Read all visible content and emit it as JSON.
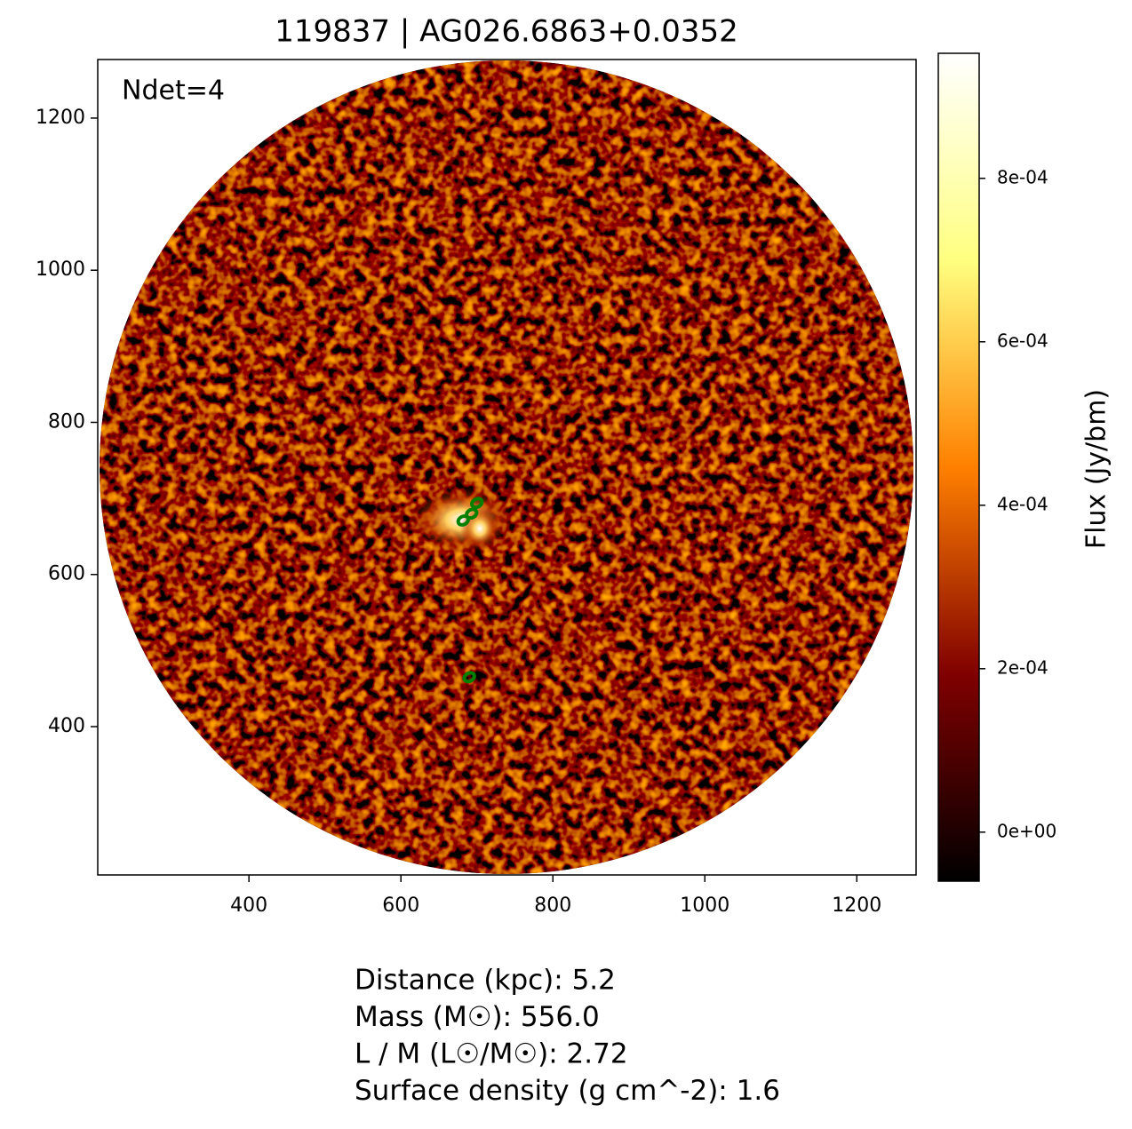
{
  "chart_data": {
    "type": "image",
    "title": "119837 | AG026.6863+0.0352",
    "annotation": "Ndet=4",
    "xlim": [
      201,
      1278
    ],
    "ylim": [
      205,
      1277
    ],
    "xticks": [
      400,
      600,
      800,
      1000,
      1200
    ],
    "yticks": [
      400,
      600,
      800,
      1000,
      1200
    ],
    "series": [
      {
        "type": "scatter",
        "color": "#008000",
        "x": [
          700,
          693,
          682,
          690
        ],
        "y": [
          694,
          680,
          671,
          465
        ]
      }
    ],
    "colorbar": {
      "label": "Flux (Jy/bm)",
      "colormap": [
        "#000000",
        "#800000",
        "#ff8000",
        "#ffff80",
        "#ffffff"
      ],
      "lim": [
        -6e-05,
        0.000953
      ],
      "ticks": [
        {
          "value": 0,
          "label": "0e+00"
        },
        {
          "value": 0.0002,
          "label": "2e-04"
        },
        {
          "value": 0.0004,
          "label": "4e-04"
        },
        {
          "value": 0.0006,
          "label": "6e-04"
        },
        {
          "value": 0.0008,
          "label": "8e-04"
        }
      ]
    },
    "info": [
      "Distance (kpc): 5.2",
      "Mass (M☉): 556.0",
      "L / M (L☉/M☉): 2.72",
      "Surface density (g cm^-2): 1.6"
    ]
  }
}
